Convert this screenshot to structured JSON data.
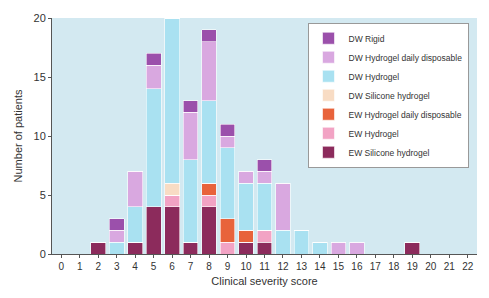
{
  "chart_data": {
    "type": "bar",
    "stacked": true,
    "x_label": "Clinical severity score",
    "y_label": "Number of patients",
    "x": [
      0,
      1,
      2,
      3,
      4,
      5,
      6,
      7,
      8,
      9,
      10,
      11,
      12,
      13,
      14,
      15,
      16,
      17,
      18,
      19,
      20,
      21,
      22
    ],
    "xlim": [
      -0.5,
      22.5
    ],
    "xticks": [
      0,
      1,
      2,
      3,
      4,
      5,
      6,
      7,
      8,
      9,
      10,
      11,
      12,
      13,
      14,
      15,
      16,
      17,
      18,
      19,
      20,
      21,
      22
    ],
    "ylim": [
      0,
      20
    ],
    "yticks": [
      0,
      5,
      10,
      15,
      20
    ],
    "grid": false,
    "legend": "upper right",
    "series": [
      {
        "name": "EW Silicone hydrogel",
        "color": "#8c2b5c",
        "values": [
          0,
          0,
          1,
          0,
          1,
          4,
          4,
          1,
          4,
          0,
          1,
          1,
          0,
          0,
          0,
          0,
          0,
          0,
          0,
          1,
          0,
          0,
          0
        ]
      },
      {
        "name": "EW Hydrogel",
        "color": "#f2a3c4",
        "values": [
          0,
          0,
          0,
          0,
          0,
          0,
          1,
          0,
          1,
          1,
          0,
          1,
          0,
          0,
          0,
          0,
          0,
          0,
          0,
          0,
          0,
          0,
          0
        ]
      },
      {
        "name": "EW Hydrogel daily disposable",
        "color": "#e8633b",
        "values": [
          0,
          0,
          0,
          0,
          0,
          0,
          0,
          0,
          1,
          2,
          1,
          0,
          0,
          0,
          0,
          0,
          0,
          0,
          0,
          0,
          0,
          0,
          0
        ]
      },
      {
        "name": "DW Silicone hydrogel",
        "color": "#f8dcc4",
        "values": [
          0,
          0,
          0,
          0,
          0,
          0,
          1,
          0,
          0,
          0,
          0,
          0,
          0,
          0,
          0,
          0,
          0,
          0,
          0,
          0,
          0,
          0,
          0
        ]
      },
      {
        "name": "DW Hydrogel",
        "color": "#a9e1f1",
        "values": [
          0,
          0,
          0,
          1,
          3,
          10,
          14,
          7,
          7,
          6,
          4,
          4,
          2,
          2,
          1,
          0,
          0,
          0,
          0,
          0,
          0,
          0,
          0
        ]
      },
      {
        "name": "DW Hydrogel daily disposable",
        "color": "#d9a8e0",
        "values": [
          0,
          0,
          0,
          1,
          3,
          2,
          0,
          4,
          5,
          1,
          1,
          1,
          4,
          0,
          0,
          1,
          1,
          0,
          0,
          0,
          0,
          0,
          0
        ]
      },
      {
        "name": "DW Rigid",
        "color": "#9b50ab",
        "values": [
          0,
          0,
          0,
          1,
          0,
          1,
          0,
          1,
          1,
          1,
          0,
          1,
          0,
          0,
          0,
          0,
          0,
          0,
          0,
          0,
          0,
          0,
          0
        ]
      }
    ]
  }
}
